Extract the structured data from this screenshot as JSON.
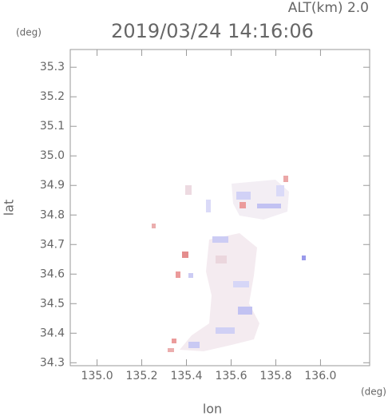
{
  "chart_data": {
    "type": "map",
    "title": "2019/03/24 14:16:06",
    "annotation": "ALT(km) 2.0",
    "xlabel": "lon",
    "ylabel": "lat",
    "x_unit": "(deg)",
    "y_unit": "(deg)",
    "xlim": [
      134.88,
      136.22
    ],
    "xticks": [
      {
        "value": 135,
        "label": "135.0"
      },
      135.2,
      135.4,
      135.6,
      135.8,
      {
        "value": 136,
        "label": "136.0"
      }
    ],
    "ylim": [
      34.29,
      35.36
    ],
    "yticks": [
      34.3,
      34.4,
      34.5,
      34.6,
      34.7,
      34.8,
      34.9,
      {
        "value": 35,
        "label": "35.0"
      },
      35.1,
      35.2,
      35.3
    ]
  }
}
